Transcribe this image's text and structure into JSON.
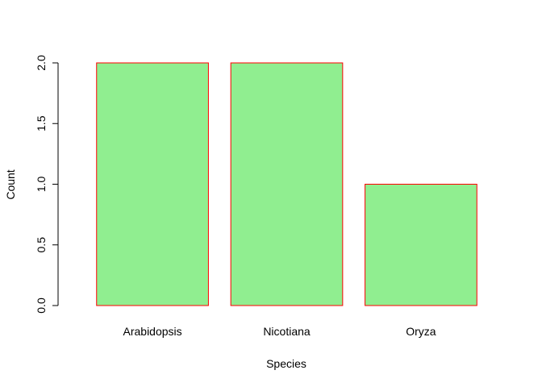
{
  "chart_data": {
    "type": "bar",
    "title": "",
    "xlabel": "Species",
    "ylabel": "Count",
    "categories": [
      "Arabidopsis",
      "Nicotiana",
      "Oryza"
    ],
    "values": [
      2,
      2,
      1
    ],
    "ylim": [
      0,
      2
    ],
    "yticks": [
      "0.0",
      "0.5",
      "1.0",
      "1.5",
      "2.0"
    ],
    "grid": false,
    "legend": "none",
    "colors": {
      "bar_fill": "#90EE90",
      "bar_border": "#FF0000",
      "axis": "#000000",
      "text": "#000000"
    }
  }
}
